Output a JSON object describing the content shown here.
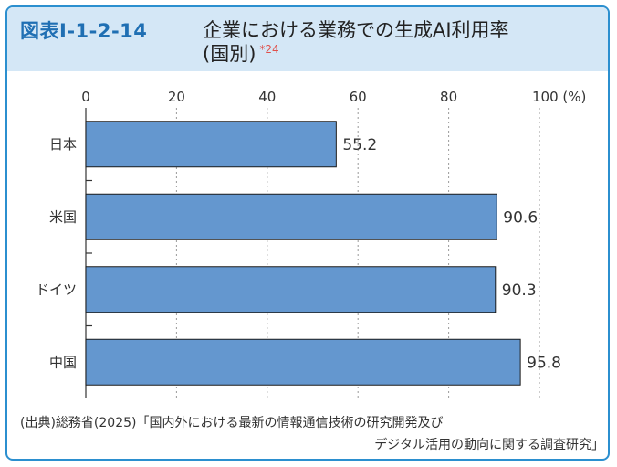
{
  "header": {
    "fig_number": "図表Ⅰ-1-2-14",
    "title": "企業における業務での生成AI利用率",
    "subtitle": "(国別)",
    "note": "*24"
  },
  "chart_data": {
    "type": "bar",
    "orientation": "horizontal",
    "categories": [
      "日本",
      "米国",
      "ドイツ",
      "中国"
    ],
    "values": [
      55.2,
      90.6,
      90.3,
      95.8
    ],
    "value_labels": [
      "55.2",
      "90.6",
      "90.3",
      "95.8"
    ],
    "xticks": [
      "0",
      "20",
      "40",
      "60",
      "80",
      "100 (%)"
    ],
    "xlim": [
      0,
      100
    ],
    "grid": "vertical-dashed",
    "bar_color": "#6497cf",
    "title": "企業における業務での生成AI利用率(国別)",
    "xlabel": "",
    "ylabel": ""
  },
  "source": {
    "line1": "(出典)総務省(2025)「国内外における最新の情報通信技術の研究開発及び",
    "line2": "デジタル活用の動向に関する調査研究」"
  }
}
